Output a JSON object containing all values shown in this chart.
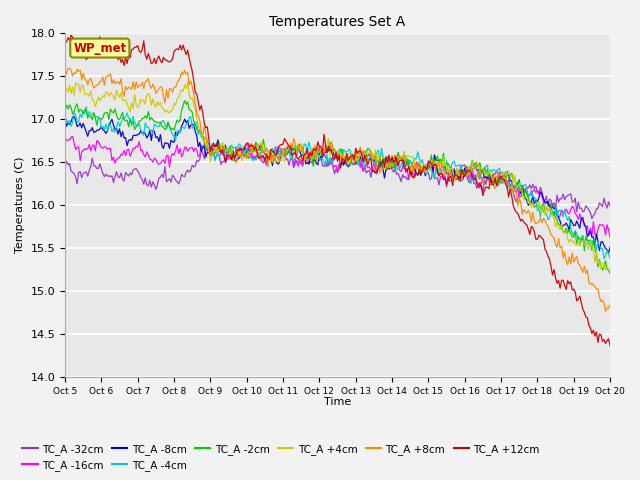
{
  "title": "Temperatures Set A",
  "xlabel": "Time",
  "ylabel": "Temperatures (C)",
  "ylim": [
    14.0,
    18.0
  ],
  "xlim": [
    0,
    360
  ],
  "x_tick_labels": [
    "Oct 5",
    "Oct 6",
    "Oct 7",
    "Oct 8",
    "Oct 9",
    "Oct 10",
    "Oct 11",
    "Oct 12",
    "Oct 13",
    "Oct 14",
    "Oct 15",
    "Oct 16",
    "Oct 17",
    "Oct 18",
    "Oct 19",
    "Oct 20"
  ],
  "x_tick_positions": [
    0,
    24,
    48,
    72,
    96,
    120,
    144,
    168,
    192,
    216,
    240,
    264,
    288,
    312,
    336,
    360
  ],
  "y_ticks": [
    14.0,
    14.5,
    15.0,
    15.5,
    16.0,
    16.5,
    17.0,
    17.5,
    18.0
  ],
  "fig_bg": "#f2f2f2",
  "plot_bg": "#e8e8e8",
  "grid_color": "#ffffff",
  "series": [
    {
      "label": "TC_A -32cm",
      "color": "#9933cc",
      "start": 16.45,
      "end_main": 15.9,
      "drop_extra": 0.0,
      "seed": 42
    },
    {
      "label": "TC_A -16cm",
      "color": "#ff00ff",
      "start": 16.72,
      "end_main": 15.65,
      "drop_extra": 0.0,
      "seed": 49
    },
    {
      "label": "TC_A -8cm",
      "color": "#0000cc",
      "start": 16.95,
      "end_main": 15.5,
      "drop_extra": 0.0,
      "seed": 56
    },
    {
      "label": "TC_A -4cm",
      "color": "#00cccc",
      "start": 17.05,
      "end_main": 15.4,
      "drop_extra": 0.0,
      "seed": 63
    },
    {
      "label": "TC_A -2cm",
      "color": "#00cc00",
      "start": 17.12,
      "end_main": 15.3,
      "drop_extra": 0.0,
      "seed": 70
    },
    {
      "label": "TC_A +4cm",
      "color": "#cccc00",
      "start": 17.35,
      "end_main": 15.25,
      "drop_extra": 0.0,
      "seed": 77
    },
    {
      "label": "TC_A +8cm",
      "color": "#ff8800",
      "start": 17.52,
      "end_main": 14.85,
      "drop_extra": 0.6,
      "seed": 84
    },
    {
      "label": "TC_A +12cm",
      "color": "#cc0000",
      "start": 17.88,
      "end_main": 14.3,
      "drop_extra": 1.2,
      "seed": 91
    }
  ],
  "wp_met_label": "WP_met",
  "wp_met_color": "#cc0000",
  "wp_met_bg": "#ffff99",
  "wp_met_border": "#888800",
  "legend_ncol": 6
}
